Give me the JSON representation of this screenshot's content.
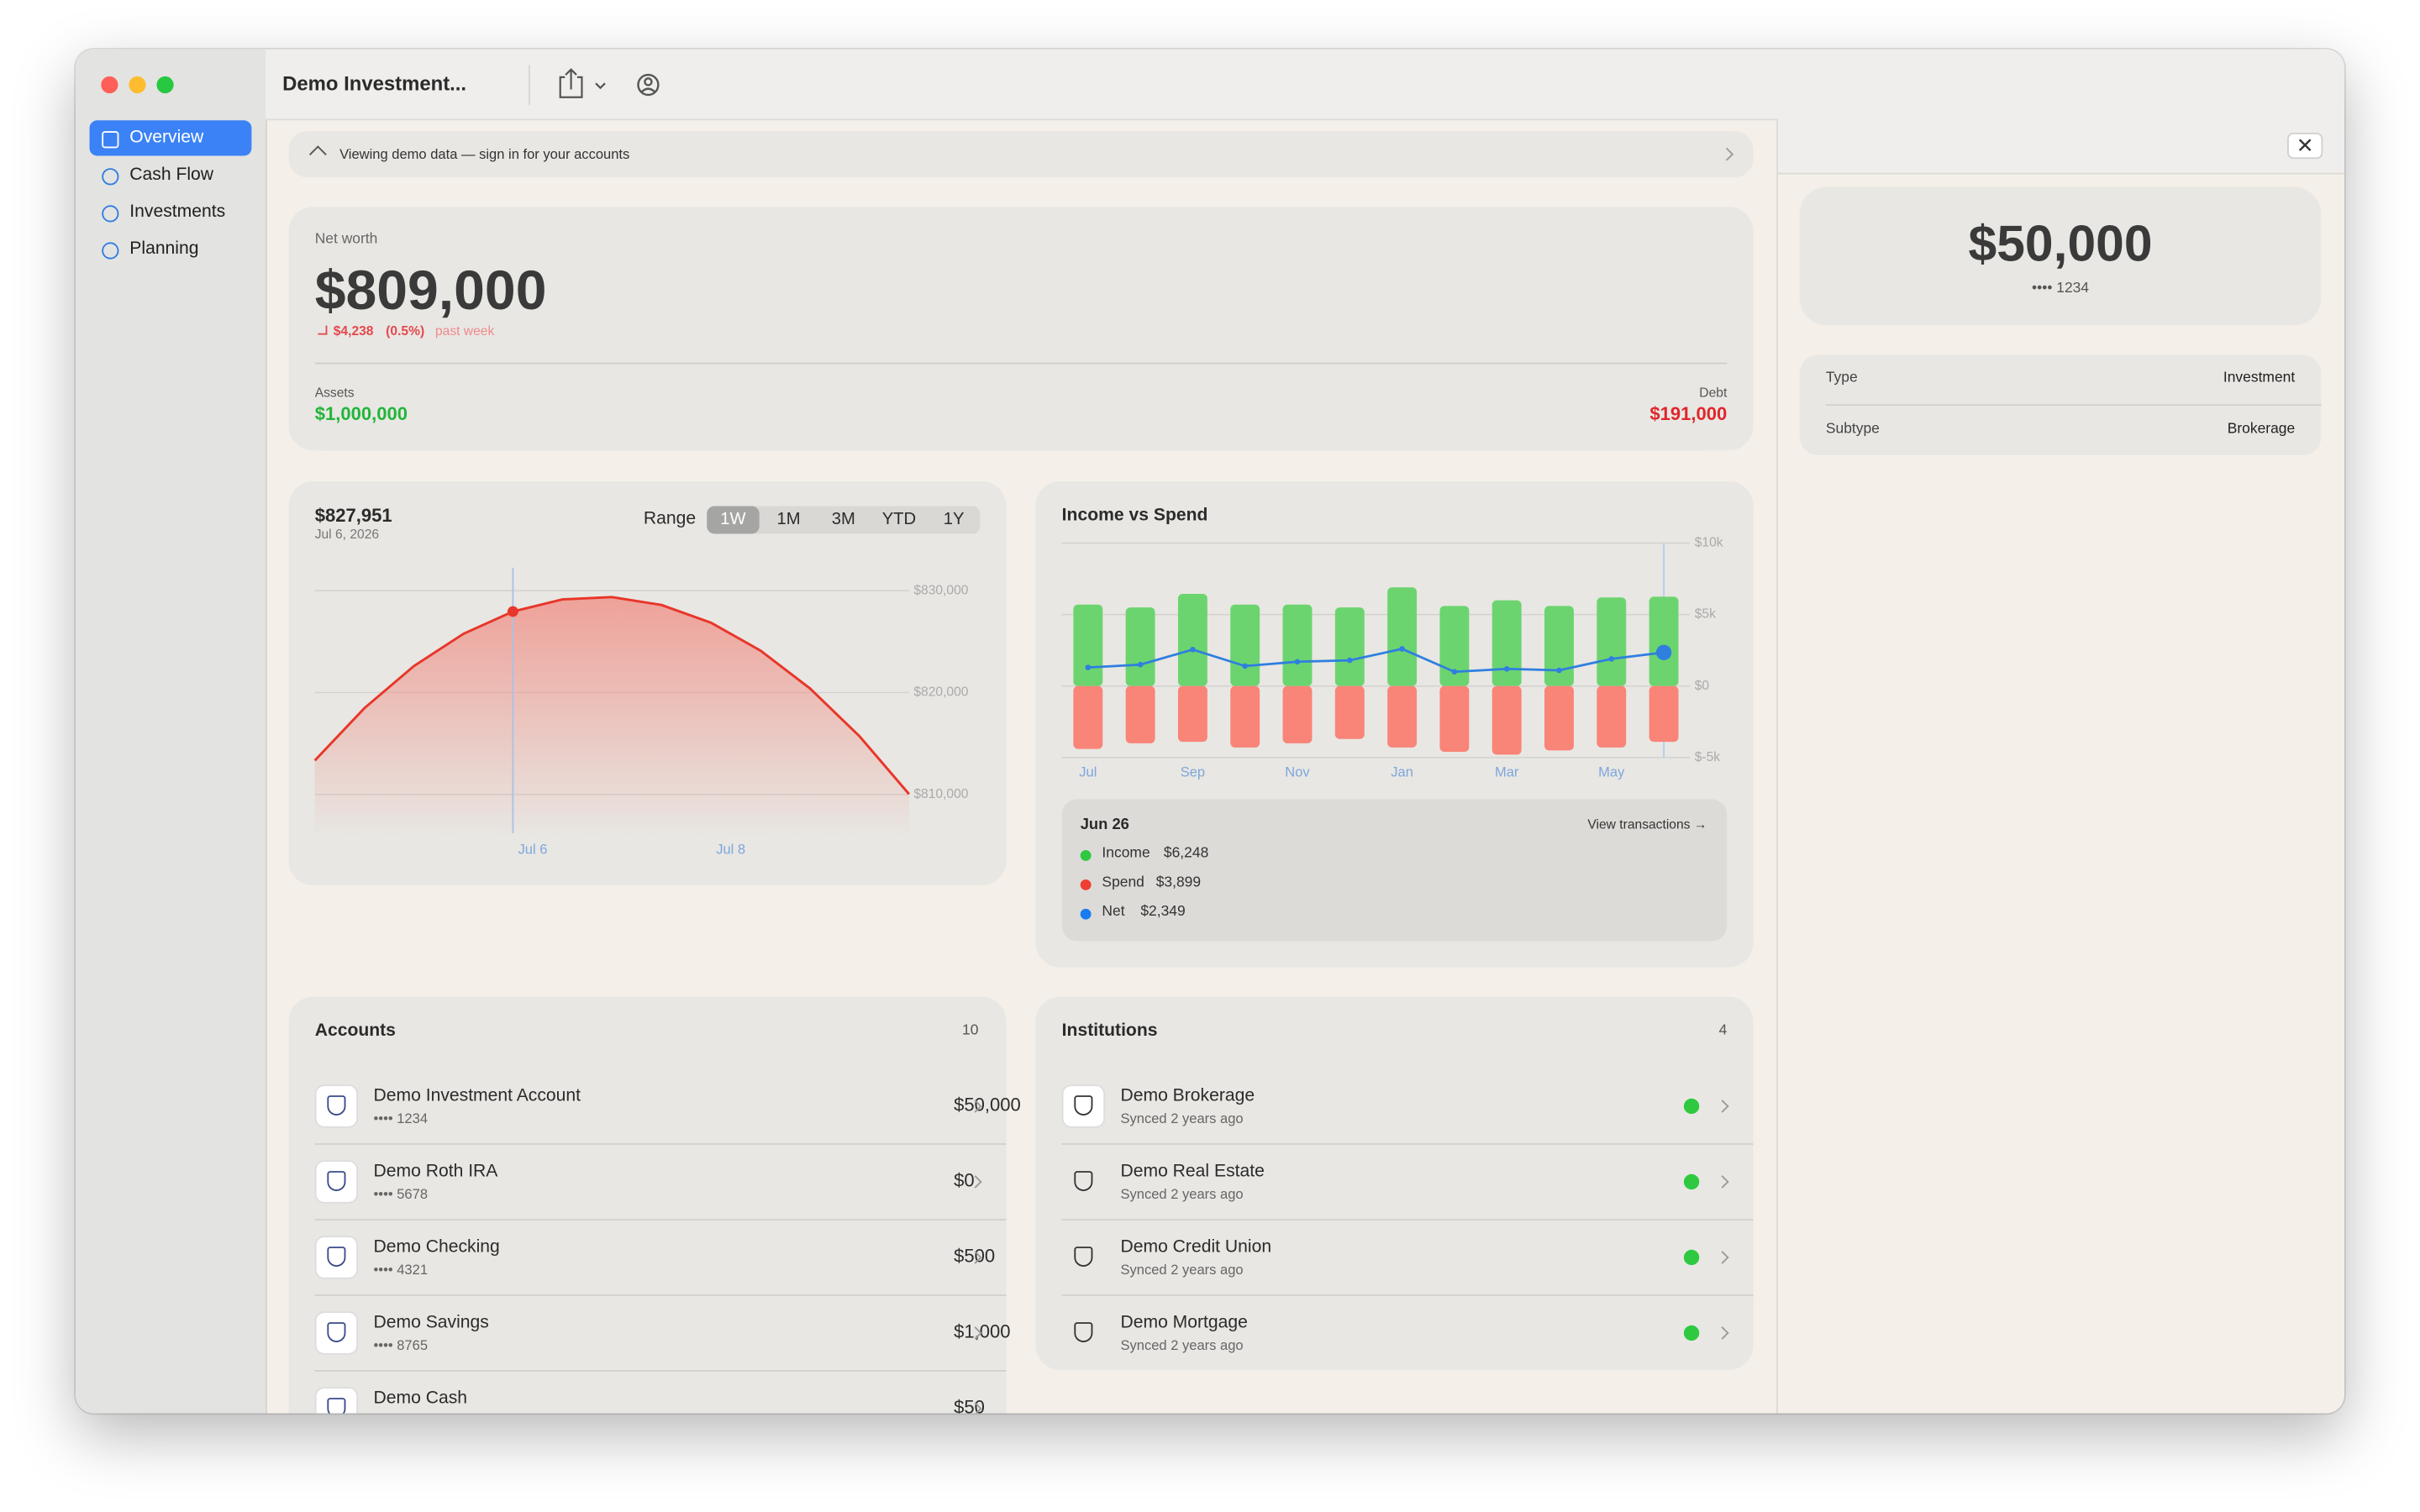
{
  "sidebar": {
    "items": [
      "Overview",
      "Cash Flow",
      "Investments",
      "Planning"
    ]
  },
  "toolbar": {
    "title": "Demo Investment..."
  },
  "banner": {
    "text": "Viewing demo data — sign in for your accounts"
  },
  "net_worth": {
    "label": "Net worth",
    "value": "$809,000",
    "change": "$4,238",
    "change_pct": "(0.5%)",
    "period": "past week",
    "assets_label": "Assets",
    "assets_value": "$1,000,000",
    "debt_label": "Debt",
    "debt_value": "$191,000"
  },
  "balance": {
    "value": "$827,951",
    "date": "Jul 6, 2026",
    "range_label": "Range",
    "ranges": [
      "1W",
      "1M",
      "3M",
      "YTD",
      "1Y"
    ],
    "selected_range": 0
  },
  "chart_data": [
    {
      "type": "area",
      "x": [
        3.8,
        4.3,
        4.8,
        5.3,
        5.8,
        6.3,
        6.8,
        7.3,
        7.8,
        8.3,
        8.8,
        9.3,
        9.8
      ],
      "series": [
        {
          "name": "Balance",
          "color": "#e8362a",
          "values": [
            813334,
            818461,
            822605,
            825767,
            827951,
            829145,
            829362,
            828596,
            826848,
            824118,
            820406,
            815712,
            810035
          ]
        }
      ],
      "selected_index": 4,
      "xlim": [
        3.8,
        9.8
      ],
      "xticks": [
        {
          "value": 6,
          "label": "Jul 6"
        },
        {
          "value": 8,
          "label": "Jul 8"
        }
      ],
      "ylim": [
        806200,
        832700
      ],
      "yticks": [
        {
          "value": 810000,
          "label": "$810,000"
        },
        {
          "value": 820000,
          "label": "$820,000"
        },
        {
          "value": 830000,
          "label": "$830,000"
        }
      ],
      "grid": true
    },
    {
      "type": "bar",
      "title": "Income vs Spend",
      "categories": [
        "Jul",
        null,
        "Sep",
        null,
        "Nov",
        null,
        "Jan",
        null,
        "Mar",
        null,
        "May",
        null
      ],
      "series": [
        {
          "name": "Income",
          "color": "#6cd46f",
          "values": [
            5700,
            5500,
            6450,
            5700,
            5700,
            5500,
            6900,
            5600,
            6000,
            5600,
            6200,
            6248
          ]
        },
        {
          "name": "Spend",
          "color": "#f98478",
          "values": [
            -4400,
            -4000,
            -3900,
            -4300,
            -4000,
            -3700,
            -4300,
            -4600,
            -4800,
            -4500,
            -4300,
            -3899
          ]
        },
        {
          "name": "Net",
          "color": "#2f7fe0",
          "type": "line",
          "values": [
            1300,
            1500,
            2550,
            1400,
            1700,
            1800,
            2600,
            1000,
            1200,
            1100,
            1900,
            2349
          ]
        }
      ],
      "selected_index": 11,
      "ylim": [
        -5000,
        10000
      ],
      "yticks": [
        {
          "value": -5000,
          "label": "$-5k"
        },
        {
          "value": 0,
          "label": "$0"
        },
        {
          "value": 5000,
          "label": "$5k"
        },
        {
          "value": 10000,
          "label": "$10k"
        }
      ],
      "grid": true
    }
  ],
  "tooltip": {
    "date": "Jun 26",
    "link": "View transactions →",
    "values": [
      "$6,248",
      "$3,899",
      "$2,349"
    ]
  },
  "accounts": {
    "title": "Accounts",
    "count": "10",
    "rows": [
      {
        "name": "Demo Investment Account",
        "mask": "•••• 1234",
        "amount": "$50,000"
      },
      {
        "name": "Demo Roth IRA",
        "mask": "•••• 5678",
        "amount": "$0"
      },
      {
        "name": "Demo Checking",
        "mask": "•••• 4321",
        "amount": "$500"
      },
      {
        "name": "Demo Savings",
        "mask": "•••• 8765",
        "amount": "$1,000"
      },
      {
        "name": "Demo Cash",
        "amount": "$50"
      }
    ]
  },
  "institutions": {
    "title": "Institutions",
    "count": "4",
    "rows": [
      {
        "name": "Demo Brokerage",
        "status": "Synced 2 years ago"
      },
      {
        "name": "Demo Real Estate",
        "status": "Synced 2 years ago"
      },
      {
        "name": "Demo Credit Union",
        "status": "Synced 2 years ago"
      },
      {
        "name": "Demo Mortgage",
        "status": "Synced 2 years ago"
      }
    ]
  },
  "detail": {
    "amount": "$50,000",
    "mask": "•••• 1234",
    "rows": [
      {
        "label": "Type",
        "value": "Investment"
      },
      {
        "label": "Subtype",
        "value": "Brokerage"
      }
    ]
  }
}
